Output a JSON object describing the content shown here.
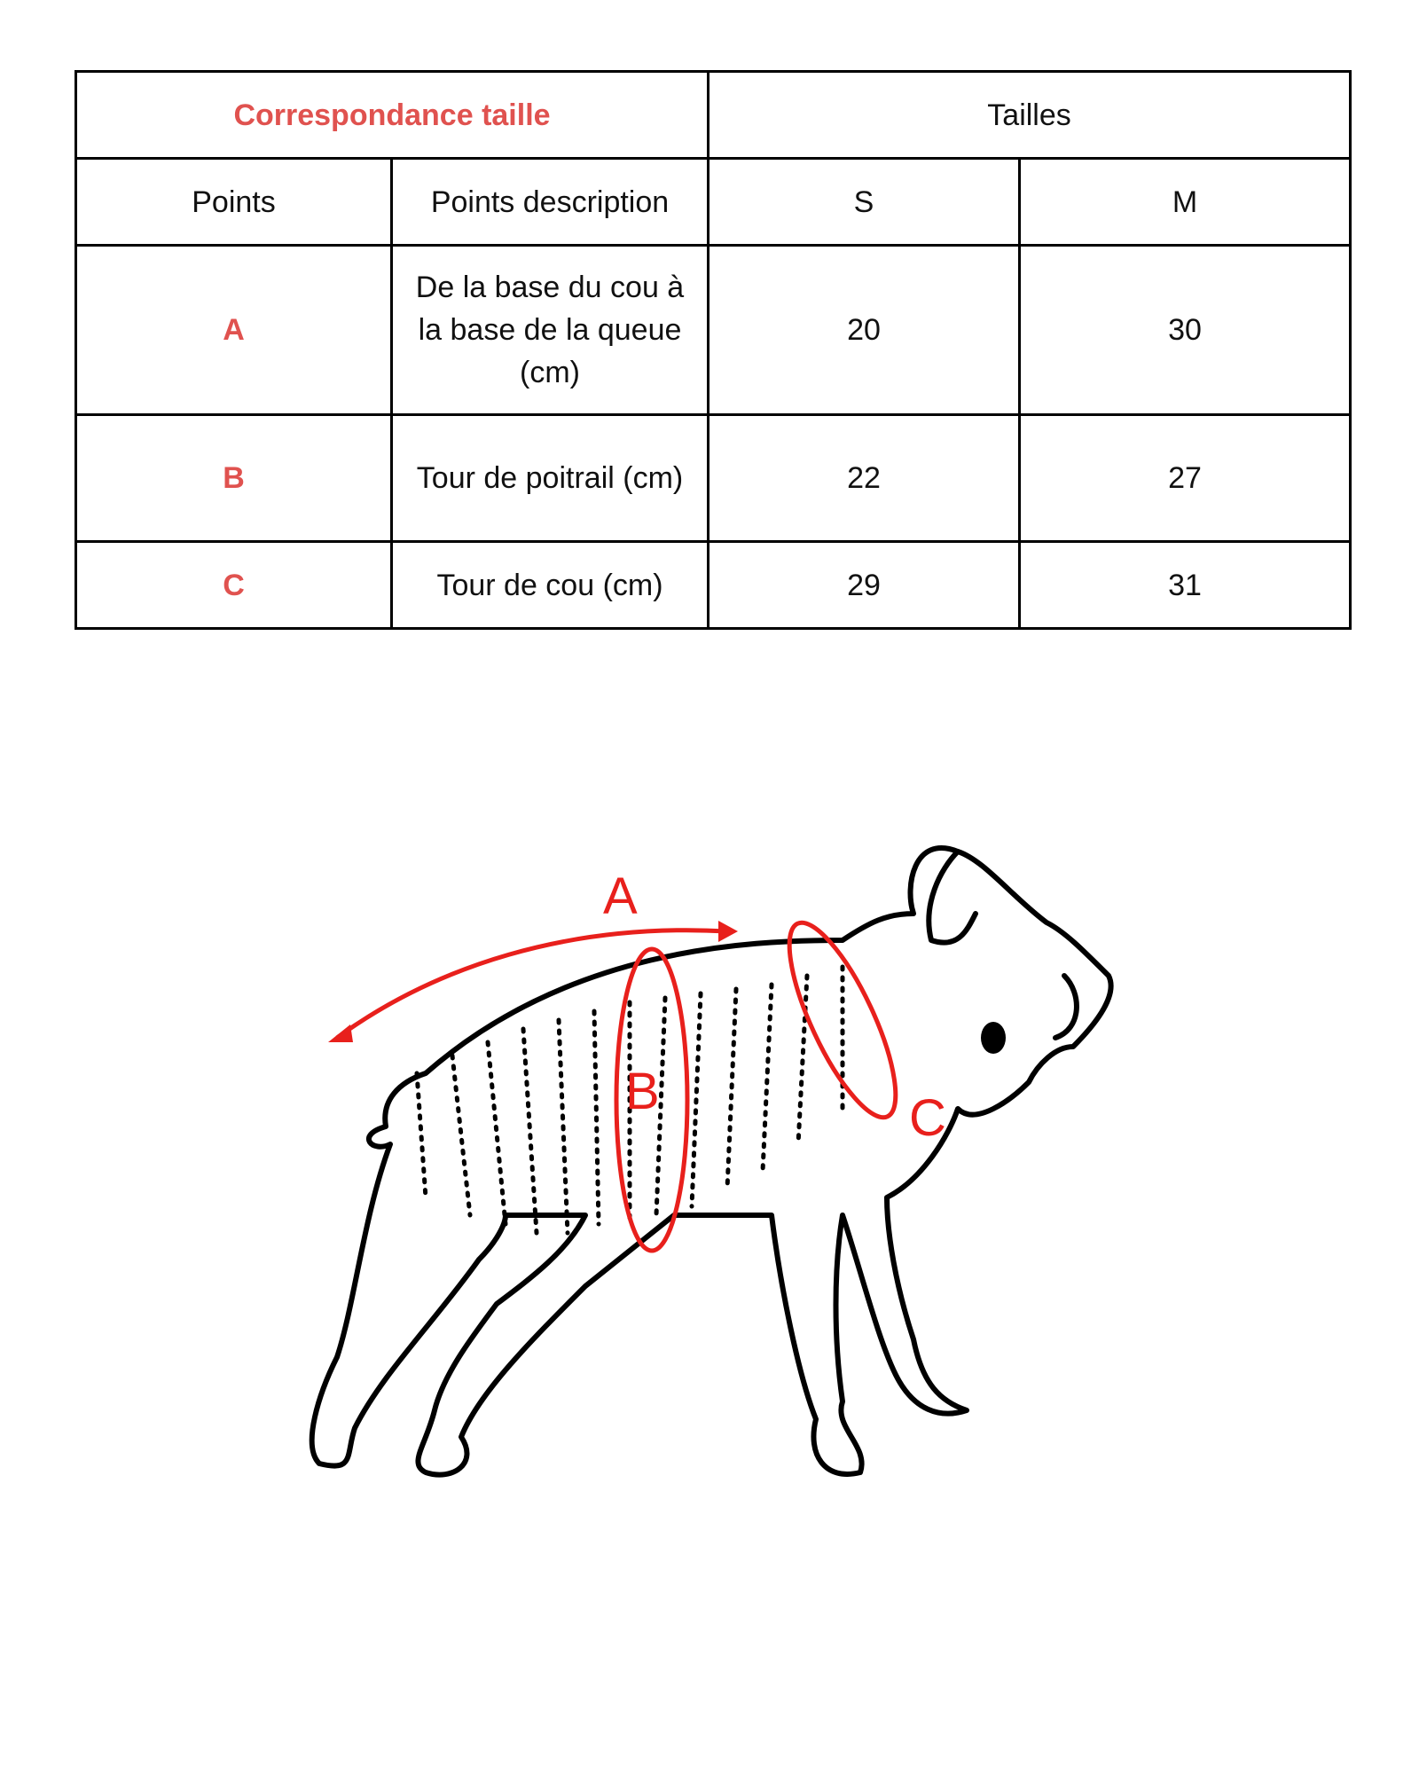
{
  "table": {
    "title": "Correspondance taille",
    "sizes_header": "Tailles",
    "columns": [
      "Points",
      "Points description",
      "S",
      "M"
    ],
    "rows": [
      {
        "point": "A",
        "description": "De la base du cou à la base de la queue (cm)",
        "S": "20",
        "M": "30"
      },
      {
        "point": "B",
        "description": "Tour de poitrail (cm)",
        "S": "22",
        "M": "27"
      },
      {
        "point": "C",
        "description": "Tour de cou (cm)",
        "S": "29",
        "M": "31"
      }
    ]
  },
  "illustration": {
    "labels": [
      "A",
      "B",
      "C"
    ],
    "accent_color": "#e8201c"
  },
  "colors": {
    "title": "#e0524f"
  }
}
